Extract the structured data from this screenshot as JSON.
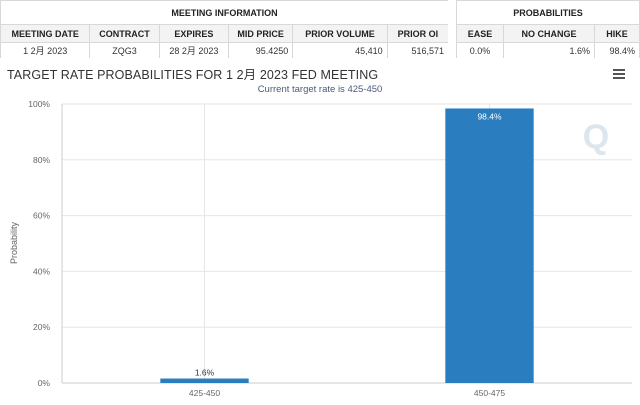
{
  "table": {
    "group_headers": {
      "meeting_info": "MEETING INFORMATION",
      "probabilities": "PROBABILITIES"
    },
    "meeting_columns": [
      "MEETING DATE",
      "CONTRACT",
      "EXPIRES",
      "MID PRICE",
      "PRIOR VOLUME",
      "PRIOR OI"
    ],
    "meeting_row": [
      "1 2月 2023",
      "ZQG3",
      "28 2月 2023",
      "95.4250",
      "45,410",
      "516,571"
    ],
    "prob_columns": [
      "EASE",
      "NO CHANGE",
      "HIKE"
    ],
    "prob_row": [
      "0.0%",
      "1.6%",
      "98.4%"
    ]
  },
  "chart": {
    "title": "TARGET RATE PROBABILITIES FOR 1 2月 2023 FED MEETING",
    "subtitle": "Current target rate is 425-450",
    "watermark": "Q"
  },
  "chart_data": {
    "type": "bar",
    "title": "TARGET RATE PROBABILITIES FOR 1 2月 2023 FED MEETING",
    "subtitle": "Current target rate is 425-450",
    "xlabel": "",
    "ylabel": "Probability",
    "categories": [
      "425-450",
      "450-475"
    ],
    "values": [
      1.6,
      98.4
    ],
    "data_labels": [
      "1.6%",
      "98.4%"
    ],
    "yticks": [
      "0%",
      "20%",
      "40%",
      "60%",
      "80%",
      "100%"
    ],
    "ylim": [
      0,
      100
    ],
    "grid": true,
    "colors": {
      "bar": "#2a7ebf",
      "grid": "#e6e6e6"
    }
  }
}
